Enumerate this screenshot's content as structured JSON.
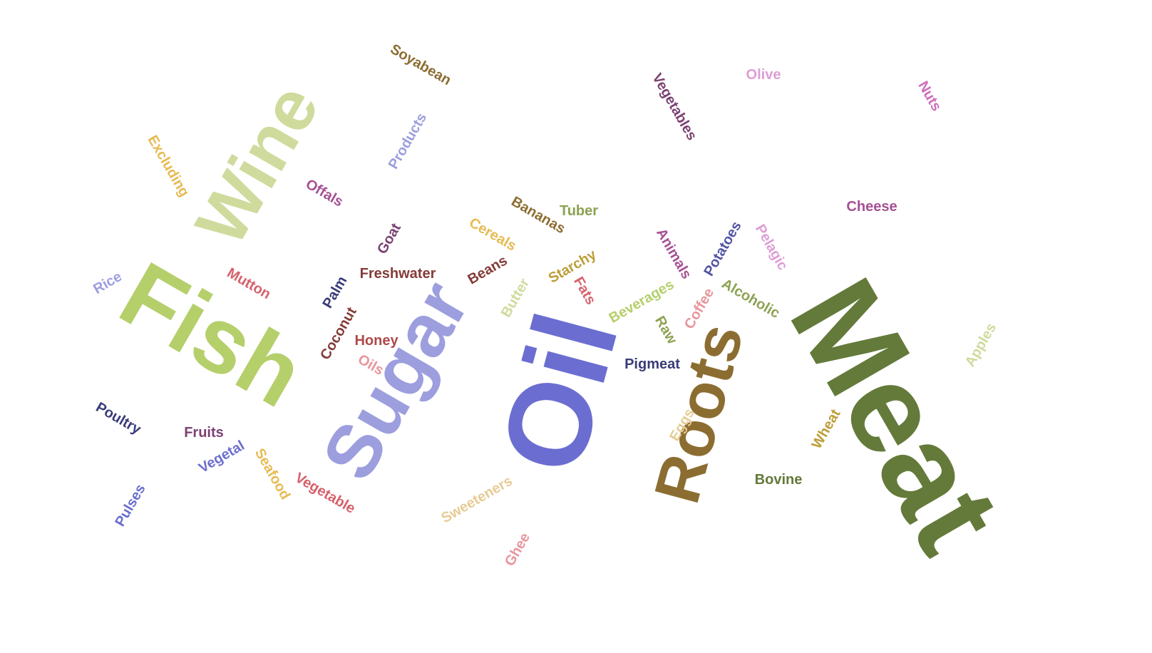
{
  "words": [
    {
      "text": "Meat",
      "color": "#647a3a"
    },
    {
      "text": "Oil",
      "color": "#6b6ed0"
    },
    {
      "text": "Fish",
      "color": "#b5cf6b"
    },
    {
      "text": "Sugar",
      "color": "#9c9ede"
    },
    {
      "text": "Wine",
      "color": "#cedb9c"
    },
    {
      "text": "Roots",
      "color": "#8c6d31"
    },
    {
      "text": "Soyabean",
      "color": "#8c6d31"
    },
    {
      "text": "Olive",
      "color": "#de9ed6"
    },
    {
      "text": "Nuts",
      "color": "#ce6dbd"
    },
    {
      "text": "Vegetables",
      "color": "#7b4173"
    },
    {
      "text": "Products",
      "color": "#9c9ede"
    },
    {
      "text": "Excluding",
      "color": "#e7ba52"
    },
    {
      "text": "Offals",
      "color": "#a55194"
    },
    {
      "text": "Bananas",
      "color": "#8c6d31"
    },
    {
      "text": "Tuber",
      "color": "#8ca252"
    },
    {
      "text": "Cheese",
      "color": "#a55194"
    },
    {
      "text": "Cereals",
      "color": "#e7ba52"
    },
    {
      "text": "Goat",
      "color": "#7b4173"
    },
    {
      "text": "Animals",
      "color": "#a55194"
    },
    {
      "text": "Potatoes",
      "color": "#5254a3"
    },
    {
      "text": "Pelagic",
      "color": "#de9ed6"
    },
    {
      "text": "Mutton",
      "color": "#d6616b"
    },
    {
      "text": "Freshwater",
      "color": "#843c39"
    },
    {
      "text": "Beans",
      "color": "#843c39"
    },
    {
      "text": "Starchy",
      "color": "#bd9e39"
    },
    {
      "text": "Rice",
      "color": "#9c9ede"
    },
    {
      "text": "Palm",
      "color": "#393b79"
    },
    {
      "text": "Butter",
      "color": "#cedb9c"
    },
    {
      "text": "Fats",
      "color": "#d6616b"
    },
    {
      "text": "Beverages",
      "color": "#b5cf6b"
    },
    {
      "text": "Alcoholic",
      "color": "#8ca252"
    },
    {
      "text": "Coffee",
      "color": "#e7969c"
    },
    {
      "text": "Raw",
      "color": "#8ca252"
    },
    {
      "text": "Coconut",
      "color": "#843c39"
    },
    {
      "text": "Honey",
      "color": "#ad494a"
    },
    {
      "text": "Oils",
      "color": "#e7969c"
    },
    {
      "text": "Pigmeat",
      "color": "#393b79"
    },
    {
      "text": "Apples",
      "color": "#cedb9c"
    },
    {
      "text": "Poultry",
      "color": "#393b79"
    },
    {
      "text": "Fruits",
      "color": "#7b4173"
    },
    {
      "text": "Vegetal",
      "color": "#6b6ecf"
    },
    {
      "text": "Seafood",
      "color": "#e7ba52"
    },
    {
      "text": "Vegetable",
      "color": "#d6616b"
    },
    {
      "text": "Eggs",
      "color": "#e7cb94"
    },
    {
      "text": "Wheat",
      "color": "#bd9e39"
    },
    {
      "text": "Bovine",
      "color": "#637939"
    },
    {
      "text": "Pulses",
      "color": "#6b6ecf"
    },
    {
      "text": "Sweeteners",
      "color": "#e7cb94"
    },
    {
      "text": "Ghee",
      "color": "#e7969c"
    }
  ]
}
